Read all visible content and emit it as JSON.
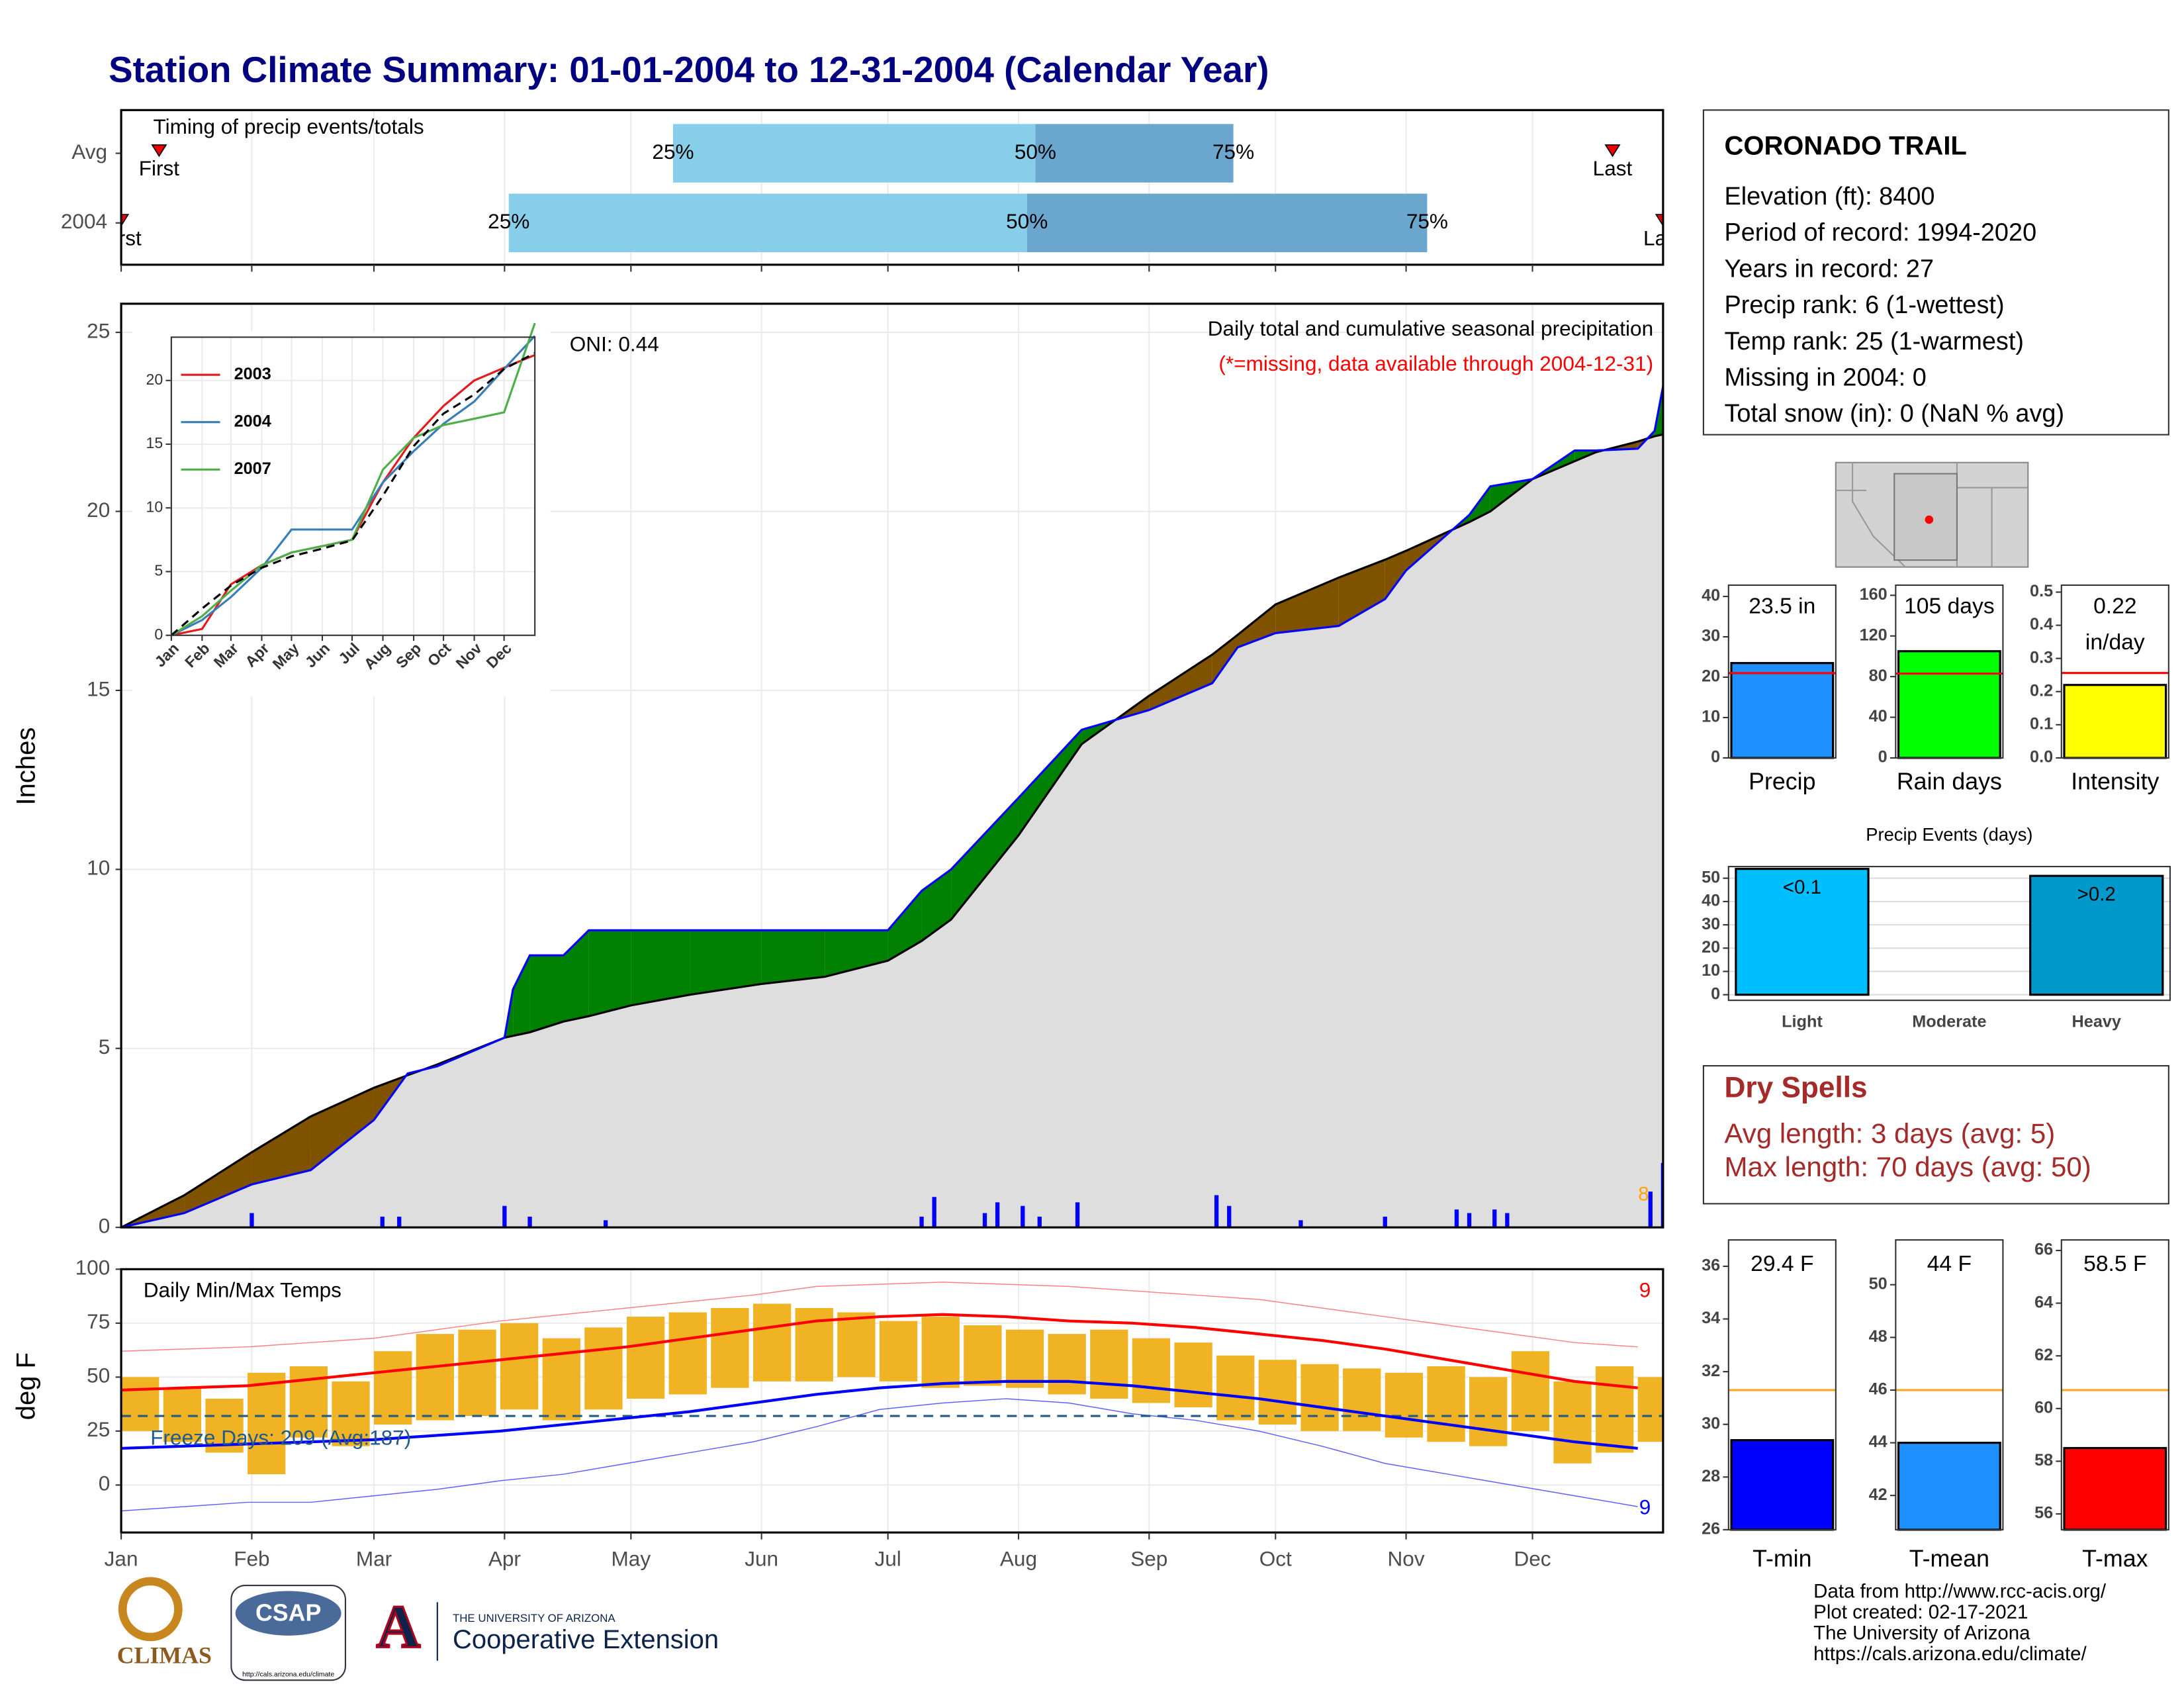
{
  "title": "Station Climate Summary: 01-01-2004 to 12-31-2004 (Calendar Year)",
  "station": {
    "name": "CORONADO TRAIL",
    "lines": [
      "Elevation (ft): 8400",
      "Period of record: 1994-2020",
      "Years in record: 27",
      "Precip rank: 6 (1-wettest)",
      "Temp rank: 25 (1-warmest)",
      "Missing in 2004: 0",
      "Total snow (in): 0 (NaN % avg)"
    ]
  },
  "dry_spells": {
    "title": "Dry Spells",
    "lines": [
      "Avg length: 3 days (avg: 5)",
      "Max length: 70 days (avg: 50)"
    ]
  },
  "footer": [
    "Data from http://www.rcc-acis.org/",
    "Plot created: 02-17-2021",
    "The University of Arizona",
    "https://cals.arizona.edu/climate/"
  ],
  "logos": {
    "climas": "CLIMAS",
    "csap": "CSAP",
    "csap_url": "http://cals.arizona.edu/climate",
    "ua_mark": "A",
    "ua": "THE UNIVERSITY OF ARIZONA",
    "ext": "Cooperative Extension"
  },
  "chart_data": [
    {
      "type": "timeline",
      "title": "Timing of precip events/totals",
      "xlim": [
        0,
        366
      ],
      "quantile_labels": [
        "25%",
        "50%",
        "75%"
      ],
      "end_labels": [
        "First",
        "Last"
      ],
      "colors": [
        "#87ceeb",
        "#6ba6cf"
      ],
      "rows": [
        {
          "name": "Avg",
          "quantiles": [
            131,
            217,
            264
          ],
          "ends": [
            9,
            354
          ]
        },
        {
          "name": "2004",
          "quantiles": [
            92,
            215,
            310
          ],
          "ends": [
            0,
            366
          ]
        }
      ]
    },
    {
      "type": "area",
      "ylabel": "Inches",
      "title": "Daily total and cumulative seasonal precipitation",
      "subtitle": "(*=missing, data available through 2004-12-31)",
      "annotation": "ONI: 0.44",
      "marker_count": 8,
      "xlim": [
        0,
        366
      ],
      "ylim": [
        0,
        25.8
      ],
      "yticks": [
        0,
        5,
        10,
        15,
        20,
        25
      ],
      "grid": true,
      "area_color": "#dedede",
      "above_color": "#008000",
      "below_color": "#7f5200",
      "x": [
        0,
        15,
        31,
        45,
        60,
        68,
        75,
        91,
        93,
        97,
        105,
        111,
        121,
        135,
        152,
        167,
        182,
        190,
        197,
        213,
        228,
        244,
        259,
        265,
        274,
        289,
        300,
        305,
        320,
        325,
        335,
        345,
        350,
        360,
        364,
        366
      ],
      "series": [
        {
          "color": "#000000",
          "values": [
            0,
            0.9,
            2.1,
            3.1,
            3.9,
            4.25,
            4.55,
            5.3,
            5.35,
            5.45,
            5.75,
            5.9,
            6.2,
            6.5,
            6.8,
            7.0,
            7.45,
            8.0,
            8.6,
            10.95,
            13.5,
            14.85,
            16.0,
            16.55,
            17.4,
            18.15,
            18.65,
            18.9,
            19.7,
            20.0,
            20.9,
            21.4,
            21.65,
            21.95,
            22.1,
            22.15
          ]
        },
        {
          "color": "#0000ff",
          "values": [
            0,
            0.4,
            1.2,
            1.6,
            3.0,
            4.3,
            4.5,
            5.3,
            6.65,
            7.6,
            7.6,
            8.3,
            8.3,
            8.3,
            8.3,
            8.3,
            8.3,
            9.4,
            10.0,
            12.0,
            13.9,
            14.45,
            15.2,
            16.2,
            16.6,
            16.8,
            17.55,
            18.35,
            19.9,
            20.7,
            20.9,
            21.7,
            21.7,
            21.75,
            22.25,
            23.5
          ]
        }
      ],
      "daily": {
        "color": "#0000ff",
        "x": [
          31,
          62,
          66,
          91,
          97,
          115,
          190,
          193,
          205,
          208,
          214,
          218,
          227,
          260,
          263,
          280,
          300,
          317,
          320,
          326,
          329,
          363,
          366
        ],
        "values": [
          0.4,
          0.3,
          0.3,
          0.6,
          0.3,
          0.2,
          0.3,
          0.85,
          0.4,
          0.7,
          0.6,
          0.3,
          0.7,
          0.9,
          0.6,
          0.2,
          0.3,
          0.5,
          0.4,
          0.5,
          0.4,
          1.0,
          1.8
        ]
      }
    },
    {
      "type": "line",
      "xlim": [
        0,
        366
      ],
      "ylim": [
        0,
        23.4
      ],
      "yticks": [
        0,
        5,
        10,
        15,
        20
      ],
      "grid": true,
      "xticks": [
        {
          "value": 0,
          "label": "Jan"
        },
        {
          "value": 31,
          "label": "Feb"
        },
        {
          "value": 60,
          "label": "Mar"
        },
        {
          "value": 91,
          "label": "Apr"
        },
        {
          "value": 121,
          "label": "May"
        },
        {
          "value": 152,
          "label": "Jun"
        },
        {
          "value": 182,
          "label": "Jul"
        },
        {
          "value": 213,
          "label": "Aug"
        },
        {
          "value": 244,
          "label": "Sep"
        },
        {
          "value": 274,
          "label": "Oct"
        },
        {
          "value": 305,
          "label": "Nov"
        },
        {
          "value": 335,
          "label": "Dec"
        }
      ],
      "x": [
        0,
        31,
        60,
        91,
        121,
        152,
        182,
        213,
        244,
        274,
        305,
        335,
        366
      ],
      "series": [
        {
          "name": "2003",
          "color": "#e41a1c",
          "values": [
            0,
            0.5,
            4,
            5.5,
            6.5,
            7,
            7.5,
            12,
            15.5,
            18,
            20,
            21,
            22
          ]
        },
        {
          "name": "2004",
          "color": "#377eb8",
          "values": [
            0,
            1.2,
            3.0,
            5.3,
            8.3,
            8.3,
            8.3,
            12.0,
            14.45,
            16.6,
            18.35,
            20.9,
            23.5
          ]
        },
        {
          "name": "2007",
          "color": "#4daf4a",
          "values": [
            0,
            1.5,
            3.5,
            5.5,
            6.5,
            7,
            7.5,
            13,
            15.5,
            16.5,
            17,
            17.5,
            24.5
          ]
        },
        {
          "color": "#000000",
          "dash": true,
          "values": [
            0,
            2.1,
            3.9,
            5.3,
            6.2,
            6.8,
            7.45,
            10.95,
            14.85,
            17.4,
            18.9,
            20.9,
            22.15
          ]
        }
      ]
    },
    {
      "type": "range_bar",
      "ylabel": "deg F",
      "title": "Daily Min/Max Temps",
      "annotation": "Freeze Days: 209 (Avg:187)",
      "record_high_count": 9,
      "record_low_count": 9,
      "xlim": [
        0,
        366
      ],
      "ylim": [
        -22,
        100
      ],
      "yticks": [
        0,
        25,
        50,
        75,
        100
      ],
      "grid": true,
      "xticks": [
        {
          "value": 0,
          "label": "Jan"
        },
        {
          "value": 31,
          "label": "Feb"
        },
        {
          "value": 60,
          "label": "Mar"
        },
        {
          "value": 91,
          "label": "Apr"
        },
        {
          "value": 121,
          "label": "May"
        },
        {
          "value": 152,
          "label": "Jun"
        },
        {
          "value": 182,
          "label": "Jul"
        },
        {
          "value": 213,
          "label": "Aug"
        },
        {
          "value": 244,
          "label": "Sep"
        },
        {
          "value": 274,
          "label": "Oct"
        },
        {
          "value": 305,
          "label": "Nov"
        },
        {
          "value": 335,
          "label": "Dec"
        }
      ],
      "freeze_line": 32,
      "freeze_color": "#1f5a8a",
      "x": [
        0,
        15,
        30,
        45,
        60,
        75,
        90,
        105,
        120,
        135,
        150,
        165,
        180,
        195,
        210,
        225,
        240,
        255,
        270,
        285,
        300,
        315,
        330,
        345,
        360
      ],
      "series": [
        {
          "color": "#ff8080",
          "width": 0.7,
          "values": [
            62,
            63,
            64,
            66,
            68,
            72,
            76,
            79,
            82,
            85,
            88,
            92,
            93,
            94,
            93,
            92,
            90,
            88,
            86,
            82,
            78,
            74,
            70,
            66,
            64
          ]
        },
        {
          "color": "#6060ff",
          "width": 0.7,
          "values": [
            -12,
            -10,
            -8,
            -8,
            -5,
            -2,
            2,
            5,
            10,
            15,
            20,
            27,
            35,
            38,
            40,
            38,
            33,
            30,
            25,
            18,
            10,
            5,
            0,
            -5,
            -10
          ]
        },
        {
          "color": "#ff0000",
          "width": 2,
          "values": [
            44,
            45,
            46,
            49,
            52,
            55,
            58,
            61,
            64,
            68,
            72,
            76,
            78,
            79,
            78,
            76,
            75,
            73,
            70,
            67,
            63,
            58,
            53,
            48,
            45
          ]
        },
        {
          "color": "#0000ff",
          "width": 2,
          "values": [
            17,
            18,
            19,
            20,
            21,
            23,
            25,
            28,
            31,
            34,
            38,
            42,
            45,
            47,
            48,
            48,
            46,
            43,
            40,
            36,
            32,
            28,
            24,
            20,
            17
          ]
        }
      ],
      "bars": {
        "color": "#f0b323",
        "x": [
          0,
          10,
          20,
          30,
          40,
          50,
          60,
          70,
          80,
          90,
          100,
          110,
          120,
          130,
          140,
          150,
          160,
          170,
          180,
          190,
          200,
          210,
          220,
          230,
          240,
          250,
          260,
          270,
          280,
          290,
          300,
          310,
          320,
          330,
          340,
          350,
          360
        ],
        "low": [
          25,
          20,
          15,
          5,
          22,
          18,
          28,
          30,
          32,
          35,
          30,
          35,
          40,
          42,
          45,
          48,
          48,
          50,
          48,
          45,
          46,
          45,
          42,
          40,
          38,
          36,
          30,
          28,
          25,
          25,
          22,
          20,
          18,
          25,
          10,
          15,
          20
        ],
        "high": [
          50,
          45,
          40,
          52,
          55,
          48,
          62,
          70,
          72,
          75,
          68,
          73,
          78,
          80,
          82,
          84,
          82,
          80,
          76,
          78,
          74,
          72,
          70,
          72,
          68,
          66,
          60,
          58,
          56,
          54,
          52,
          55,
          50,
          62,
          48,
          55,
          50
        ]
      }
    },
    {
      "type": "bar",
      "categories": [
        "Precip"
      ],
      "values": [
        23.5
      ],
      "value_labels": [
        "23.5 in"
      ],
      "color": "#1e90ff",
      "avg": 21.0,
      "avg_color": "#ff0000",
      "ylim": [
        0,
        42.8
      ],
      "yticks": [
        0,
        10,
        20,
        30,
        40
      ]
    },
    {
      "type": "bar",
      "categories": [
        "Rain days"
      ],
      "values": [
        105
      ],
      "value_labels": [
        "105 days"
      ],
      "color": "#00ff00",
      "avg": 83,
      "avg_color": "#ff0000",
      "ylim": [
        0,
        170
      ],
      "yticks": [
        0,
        40,
        80,
        120,
        160
      ]
    },
    {
      "type": "bar",
      "categories": [
        "Intensity"
      ],
      "values": [
        0.22
      ],
      "unit_label": "in/day",
      "color": "#ffff00",
      "avg": 0.256,
      "avg_color": "#ff0000",
      "ylim": [
        0,
        0.521
      ],
      "yticks": [
        {
          "value": 0,
          "label": "0.0"
        },
        0.1,
        0.2,
        0.3,
        0.4,
        0.5
      ]
    },
    {
      "type": "bar",
      "title": "Precip Events (days)",
      "categories": [
        "Light",
        "Moderate",
        "Heavy"
      ],
      "values": [
        54,
        0,
        51
      ],
      "bar_labels": [
        "<0.1",
        null,
        ">0.2"
      ],
      "colors": [
        "#00bfff",
        "#00bfff",
        "#0099cc"
      ],
      "grid": true,
      "ylim": [
        -2.4,
        55
      ],
      "yticks": [
        0,
        10,
        20,
        30,
        40,
        50
      ]
    },
    {
      "type": "bar",
      "categories": [
        "T-min"
      ],
      "values": [
        29.4
      ],
      "value_labels": [
        "29.4 F"
      ],
      "color": "#0000ff",
      "avg": 31.3,
      "avg_color": "#f5a623",
      "ylim": [
        26,
        37
      ],
      "yticks": [
        26,
        28,
        30,
        32,
        34,
        36
      ]
    },
    {
      "type": "bar",
      "categories": [
        "T-mean"
      ],
      "values": [
        44
      ],
      "value_labels": [
        "44 F"
      ],
      "color": "#1e90ff",
      "avg": 46,
      "avg_color": "#f5a623",
      "ylim": [
        40.7,
        51.7
      ],
      "yticks": [
        42,
        44,
        46,
        48,
        50
      ]
    },
    {
      "type": "bar",
      "categories": [
        "T-max"
      ],
      "values": [
        58.5
      ],
      "value_labels": [
        "58.5 F"
      ],
      "color": "#ff0000",
      "avg": 60.7,
      "avg_color": "#f5a623",
      "ylim": [
        55.4,
        66.4
      ],
      "yticks": [
        56,
        58,
        60,
        62,
        64,
        66
      ]
    }
  ]
}
